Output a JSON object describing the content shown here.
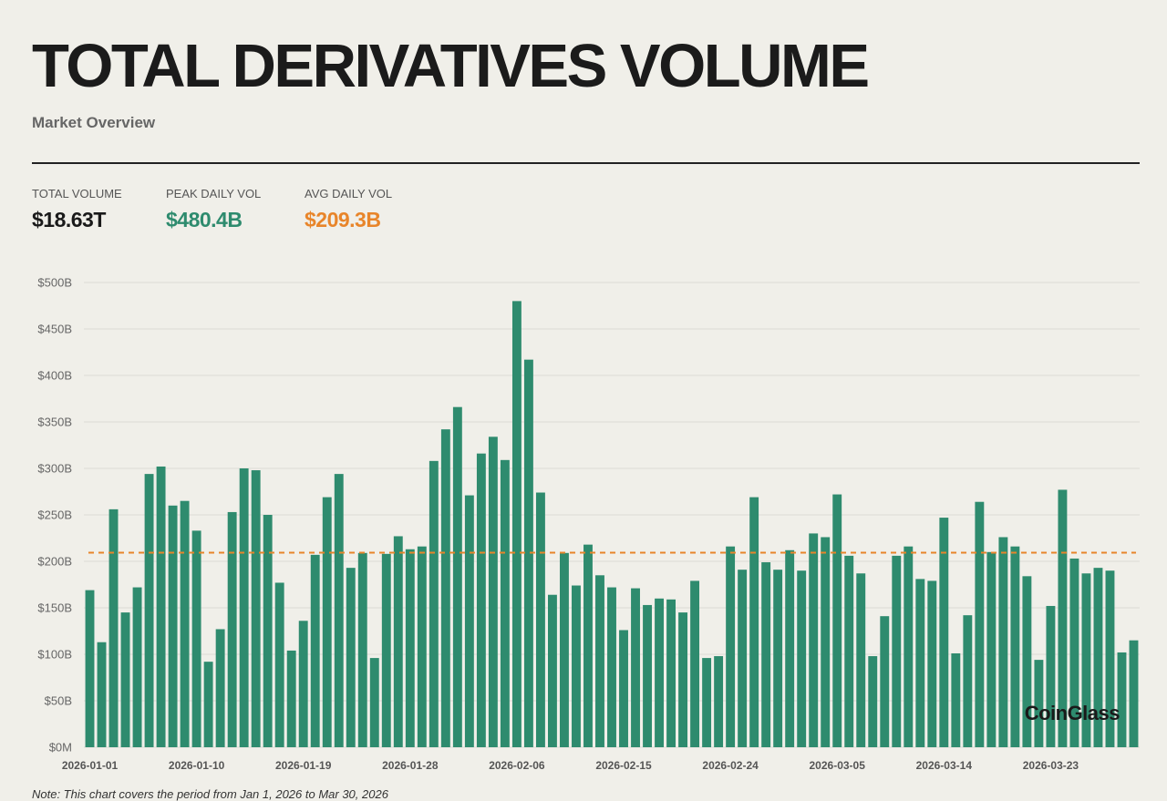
{
  "header": {
    "title": "TOTAL DERIVATIVES VOLUME",
    "subtitle": "Market Overview"
  },
  "stats": {
    "total_label": "TOTAL VOLUME",
    "total_value": "$18.63T",
    "peak_label": "PEAK DAILY VOL",
    "peak_value": "$480.4B",
    "avg_label": "AVG DAILY VOL",
    "avg_value": "$209.3B"
  },
  "colors": {
    "bar": "#2e8b6e",
    "avg_line": "#e8852a",
    "peak_text": "#2e8b6e",
    "avg_text": "#e8852a",
    "grid": "#dcdbd5",
    "background": "#f0efe9"
  },
  "watermark": "CoinGlass",
  "note": "Note: This chart covers the period from Jan 1, 2026 to Mar 30, 2026",
  "chart_data": {
    "type": "bar",
    "ylim": [
      0,
      500
    ],
    "y_ticks": [
      {
        "value": 0,
        "label": "$0M"
      },
      {
        "value": 50,
        "label": "$50B"
      },
      {
        "value": 100,
        "label": "$100B"
      },
      {
        "value": 150,
        "label": "$150B"
      },
      {
        "value": 200,
        "label": "$200B"
      },
      {
        "value": 250,
        "label": "$250B"
      },
      {
        "value": 300,
        "label": "$300B"
      },
      {
        "value": 350,
        "label": "$350B"
      },
      {
        "value": 400,
        "label": "$400B"
      },
      {
        "value": 450,
        "label": "$450B"
      },
      {
        "value": 500,
        "label": "$500B"
      }
    ],
    "x_tick_labels": [
      {
        "index": 0,
        "label": "2026-01-01"
      },
      {
        "index": 9,
        "label": "2026-01-10"
      },
      {
        "index": 18,
        "label": "2026-01-19"
      },
      {
        "index": 27,
        "label": "2026-01-28"
      },
      {
        "index": 36,
        "label": "2026-02-06"
      },
      {
        "index": 45,
        "label": "2026-02-15"
      },
      {
        "index": 54,
        "label": "2026-02-24"
      },
      {
        "index": 63,
        "label": "2026-03-05"
      },
      {
        "index": 72,
        "label": "2026-03-14"
      },
      {
        "index": 81,
        "label": "2026-03-23"
      }
    ],
    "avg_line_value": 209.3,
    "grid": true,
    "values": [
      169,
      113,
      256,
      145,
      172,
      294,
      302,
      260,
      265,
      233,
      92,
      127,
      253,
      300,
      298,
      250,
      177,
      104,
      136,
      207,
      269,
      294,
      193,
      209,
      96,
      208,
      227,
      213,
      216,
      308,
      342,
      366,
      271,
      316,
      334,
      309,
      480,
      417,
      274,
      164,
      209,
      174,
      218,
      185,
      172,
      126,
      171,
      153,
      160,
      159,
      145,
      179,
      96,
      98,
      216,
      191,
      269,
      199,
      191,
      212,
      190,
      230,
      226,
      272,
      206,
      187,
      98,
      141,
      206,
      216,
      181,
      179,
      247,
      101,
      142,
      264,
      210,
      226,
      216,
      184,
      94,
      152,
      277,
      203,
      187,
      193,
      190,
      102,
      115
    ]
  }
}
